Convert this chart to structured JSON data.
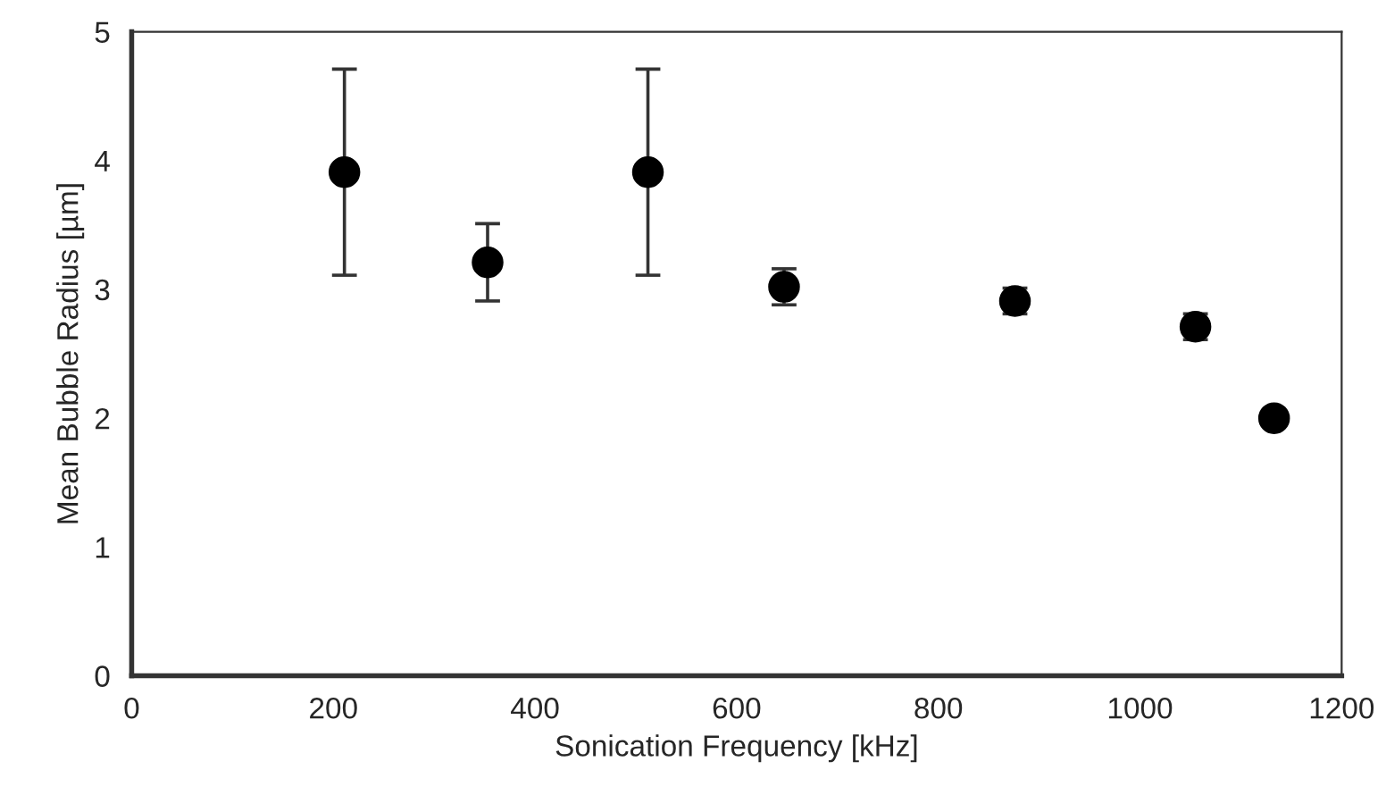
{
  "chart_data": {
    "type": "scatter",
    "xlabel": "Sonication Frequency [kHz]",
    "ylabel": "Mean Bubble Radius [µm]",
    "x": [
      211,
      353,
      512,
      647,
      876,
      1055,
      1133
    ],
    "values": [
      3.91,
      3.21,
      3.91,
      3.02,
      2.91,
      2.71,
      2.0
    ],
    "errors": [
      0.8,
      0.3,
      0.8,
      0.14,
      0.1,
      0.1,
      null
    ],
    "color": "#000000",
    "marker": "circle",
    "xlim": [
      0,
      1200
    ],
    "xticks": [
      0,
      200,
      400,
      600,
      800,
      1000,
      1200
    ],
    "ylim": [
      0,
      5
    ],
    "yticks": [
      0,
      1,
      2,
      3,
      4,
      5
    ],
    "grid": false,
    "legend": false
  }
}
